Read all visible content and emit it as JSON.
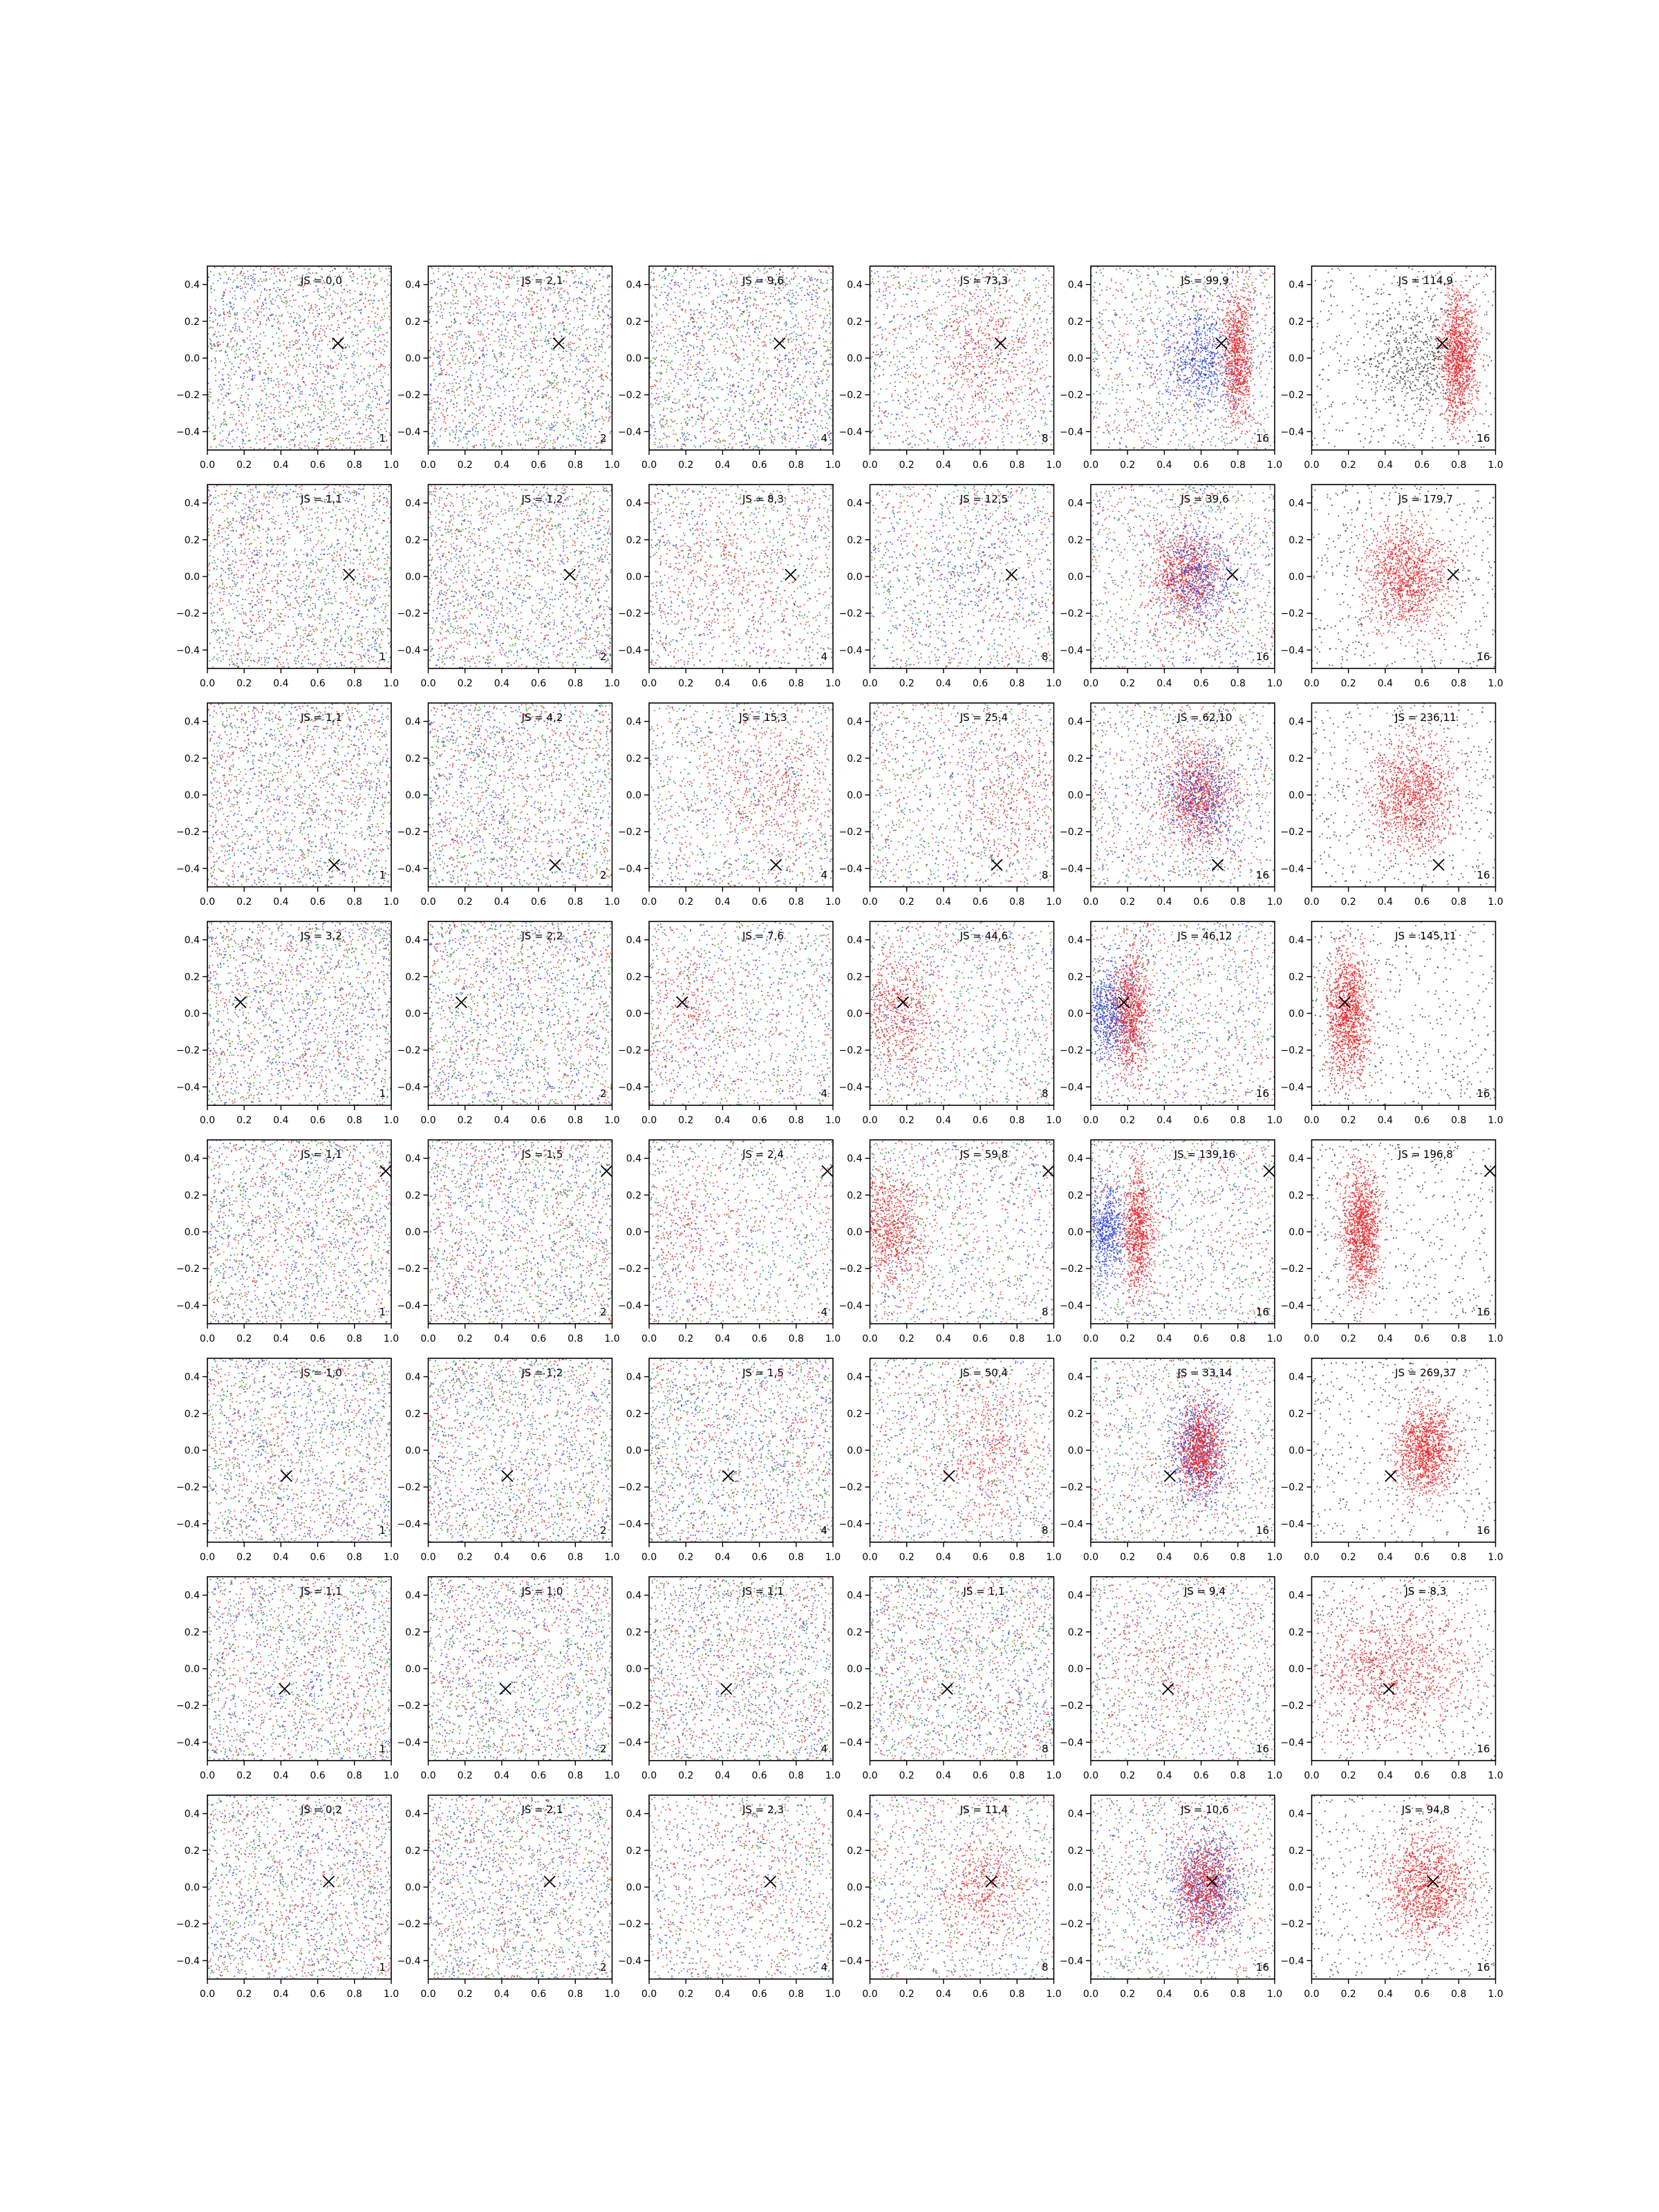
{
  "figure": {
    "layout": {
      "rows": 8,
      "cols": 6
    },
    "x_ticks": [
      "0.0",
      "0.2",
      "0.4",
      "0.6",
      "0.8",
      "1.0"
    ],
    "y_ticks": [
      "−0.4",
      "−0.2",
      "0.0",
      "0.2",
      "0.4"
    ],
    "colors": {
      "red": "#e8262a",
      "blue": "#2c3fd6",
      "green": "#2e9a2e",
      "black": "#333333",
      "marker": "#000000"
    },
    "marker_icon": "x-marker-icon"
  },
  "chart_data": [
    {
      "type": "scatter",
      "row": 0,
      "col": 0,
      "label": "JS = 0,0",
      "corner": "1",
      "marker": [
        0.71,
        0.08
      ],
      "clusters": []
    },
    {
      "type": "scatter",
      "row": 0,
      "col": 1,
      "label": "JS = 2,1",
      "corner": "2",
      "marker": [
        0.71,
        0.08
      ],
      "clusters": []
    },
    {
      "type": "scatter",
      "row": 0,
      "col": 2,
      "label": "JS = 9,6",
      "corner": "4",
      "marker": [
        0.71,
        0.08
      ],
      "clusters": []
    },
    {
      "type": "scatter",
      "row": 0,
      "col": 3,
      "label": "JS = 73,3",
      "corner": "8",
      "marker": [
        0.71,
        0.08
      ],
      "clusters": [
        {
          "color": "red",
          "cx": 0.62,
          "cy": 0.0,
          "sx": 0.15,
          "sy": 0.2,
          "n": 450
        }
      ]
    },
    {
      "type": "scatter",
      "row": 0,
      "col": 4,
      "label": "JS = 99,9",
      "corner": "16",
      "marker": [
        0.71,
        0.08
      ],
      "clusters": [
        {
          "color": "blue",
          "cx": 0.6,
          "cy": 0.0,
          "sx": 0.1,
          "sy": 0.15,
          "n": 700
        },
        {
          "color": "red",
          "cx": 0.8,
          "cy": 0.0,
          "sx": 0.04,
          "sy": 0.18,
          "n": 900
        }
      ]
    },
    {
      "type": "scatter",
      "row": 0,
      "col": 5,
      "label": "JS = 114,9",
      "corner": "16",
      "marker": [
        0.71,
        0.08
      ],
      "clusters": [
        {
          "color": "black",
          "cx": 0.55,
          "cy": 0.0,
          "sx": 0.12,
          "sy": 0.15,
          "n": 500
        },
        {
          "color": "red",
          "cx": 0.8,
          "cy": 0.0,
          "sx": 0.05,
          "sy": 0.18,
          "n": 1300
        }
      ]
    },
    {
      "type": "scatter",
      "row": 1,
      "col": 0,
      "label": "JS = 1,1",
      "corner": "1",
      "marker": [
        0.77,
        0.01
      ],
      "clusters": []
    },
    {
      "type": "scatter",
      "row": 1,
      "col": 1,
      "label": "JS = 1,2",
      "corner": "2",
      "marker": [
        0.77,
        0.01
      ],
      "clusters": []
    },
    {
      "type": "scatter",
      "row": 1,
      "col": 2,
      "label": "JS = 8,3",
      "corner": "4",
      "marker": [
        0.77,
        0.01
      ],
      "clusters": [
        {
          "color": "red",
          "cx": 0.4,
          "cy": 0.0,
          "sx": 0.2,
          "sy": 0.18,
          "n": 250
        }
      ]
    },
    {
      "type": "scatter",
      "row": 1,
      "col": 3,
      "label": "JS = 12,5",
      "corner": "8",
      "marker": [
        0.77,
        0.01
      ],
      "clusters": [
        {
          "color": "blue",
          "cx": 0.6,
          "cy": 0.0,
          "sx": 0.2,
          "sy": 0.18,
          "n": 200
        }
      ]
    },
    {
      "type": "scatter",
      "row": 1,
      "col": 4,
      "label": "JS = 39,6",
      "corner": "16",
      "marker": [
        0.77,
        0.01
      ],
      "clusters": [
        {
          "color": "red",
          "cx": 0.52,
          "cy": 0.0,
          "sx": 0.1,
          "sy": 0.13,
          "n": 900
        },
        {
          "color": "blue",
          "cx": 0.6,
          "cy": 0.0,
          "sx": 0.1,
          "sy": 0.13,
          "n": 500
        }
      ]
    },
    {
      "type": "scatter",
      "row": 1,
      "col": 5,
      "label": "JS = 179,7",
      "corner": "16",
      "marker": [
        0.77,
        0.01
      ],
      "clusters": [
        {
          "color": "red",
          "cx": 0.52,
          "cy": 0.0,
          "sx": 0.12,
          "sy": 0.15,
          "n": 1300
        }
      ]
    },
    {
      "type": "scatter",
      "row": 2,
      "col": 0,
      "label": "JS = 1,1",
      "corner": "1",
      "marker": [
        0.69,
        -0.38
      ],
      "clusters": []
    },
    {
      "type": "scatter",
      "row": 2,
      "col": 1,
      "label": "JS = 4,2",
      "corner": "2",
      "marker": [
        0.69,
        -0.38
      ],
      "clusters": []
    },
    {
      "type": "scatter",
      "row": 2,
      "col": 2,
      "label": "JS = 15,3",
      "corner": "4",
      "marker": [
        0.69,
        -0.38
      ],
      "clusters": [
        {
          "color": "red",
          "cx": 0.65,
          "cy": 0.0,
          "sx": 0.15,
          "sy": 0.2,
          "n": 350
        }
      ]
    },
    {
      "type": "scatter",
      "row": 2,
      "col": 3,
      "label": "JS = 25,4",
      "corner": "8",
      "marker": [
        0.69,
        -0.38
      ],
      "clusters": [
        {
          "color": "red",
          "cx": 0.75,
          "cy": 0.0,
          "sx": 0.15,
          "sy": 0.2,
          "n": 300
        }
      ]
    },
    {
      "type": "scatter",
      "row": 2,
      "col": 4,
      "label": "JS = 62,10",
      "corner": "16",
      "marker": [
        0.69,
        -0.38
      ],
      "clusters": [
        {
          "color": "red",
          "cx": 0.58,
          "cy": 0.0,
          "sx": 0.1,
          "sy": 0.14,
          "n": 1000
        },
        {
          "color": "blue",
          "cx": 0.6,
          "cy": 0.0,
          "sx": 0.1,
          "sy": 0.14,
          "n": 500
        }
      ]
    },
    {
      "type": "scatter",
      "row": 2,
      "col": 5,
      "label": "JS = 236,11",
      "corner": "16",
      "marker": [
        0.69,
        -0.38
      ],
      "clusters": [
        {
          "color": "red",
          "cx": 0.55,
          "cy": 0.0,
          "sx": 0.12,
          "sy": 0.16,
          "n": 1300
        }
      ]
    },
    {
      "type": "scatter",
      "row": 3,
      "col": 0,
      "label": "JS = 3,2",
      "corner": "1",
      "marker": [
        0.18,
        0.06
      ],
      "clusters": []
    },
    {
      "type": "scatter",
      "row": 3,
      "col": 1,
      "label": "JS = 2,2",
      "corner": "2",
      "marker": [
        0.18,
        0.06
      ],
      "clusters": []
    },
    {
      "type": "scatter",
      "row": 3,
      "col": 2,
      "label": "JS = 7,6",
      "corner": "4",
      "marker": [
        0.18,
        0.06
      ],
      "clusters": [
        {
          "color": "red",
          "cx": 0.2,
          "cy": 0.0,
          "sx": 0.15,
          "sy": 0.2,
          "n": 250
        }
      ]
    },
    {
      "type": "scatter",
      "row": 3,
      "col": 3,
      "label": "JS = 44,6",
      "corner": "8",
      "marker": [
        0.18,
        0.06
      ],
      "clusters": [
        {
          "color": "red",
          "cx": 0.15,
          "cy": 0.0,
          "sx": 0.1,
          "sy": 0.18,
          "n": 600
        }
      ]
    },
    {
      "type": "scatter",
      "row": 3,
      "col": 4,
      "label": "JS = 46,12",
      "corner": "16",
      "marker": [
        0.18,
        0.06
      ],
      "clusters": [
        {
          "color": "blue",
          "cx": 0.1,
          "cy": 0.0,
          "sx": 0.07,
          "sy": 0.13,
          "n": 700
        },
        {
          "color": "red",
          "cx": 0.22,
          "cy": 0.0,
          "sx": 0.05,
          "sy": 0.17,
          "n": 900
        }
      ]
    },
    {
      "type": "scatter",
      "row": 3,
      "col": 5,
      "label": "JS = 145,11",
      "corner": "16",
      "marker": [
        0.18,
        0.06
      ],
      "clusters": [
        {
          "color": "red",
          "cx": 0.2,
          "cy": 0.0,
          "sx": 0.06,
          "sy": 0.17,
          "n": 1300
        }
      ]
    },
    {
      "type": "scatter",
      "row": 4,
      "col": 0,
      "label": "JS = 1,1",
      "corner": "1",
      "marker": [
        0.97,
        0.33
      ],
      "clusters": []
    },
    {
      "type": "scatter",
      "row": 4,
      "col": 1,
      "label": "JS = 1,5",
      "corner": "2",
      "marker": [
        0.97,
        0.33
      ],
      "clusters": []
    },
    {
      "type": "scatter",
      "row": 4,
      "col": 2,
      "label": "JS = 2,4",
      "corner": "4",
      "marker": [
        0.97,
        0.33
      ],
      "clusters": [
        {
          "color": "red",
          "cx": 0.2,
          "cy": 0.0,
          "sx": 0.15,
          "sy": 0.18,
          "n": 200
        }
      ]
    },
    {
      "type": "scatter",
      "row": 4,
      "col": 3,
      "label": "JS = 59,8",
      "corner": "8",
      "marker": [
        0.97,
        0.33
      ],
      "clusters": [
        {
          "color": "red",
          "cx": 0.12,
          "cy": 0.0,
          "sx": 0.09,
          "sy": 0.16,
          "n": 800
        }
      ]
    },
    {
      "type": "scatter",
      "row": 4,
      "col": 4,
      "label": "JS = 139,16",
      "corner": "16",
      "marker": [
        0.97,
        0.33
      ],
      "clusters": [
        {
          "color": "blue",
          "cx": 0.08,
          "cy": 0.0,
          "sx": 0.06,
          "sy": 0.13,
          "n": 700
        },
        {
          "color": "red",
          "cx": 0.26,
          "cy": 0.0,
          "sx": 0.04,
          "sy": 0.17,
          "n": 900
        }
      ]
    },
    {
      "type": "scatter",
      "row": 4,
      "col": 5,
      "label": "JS = 196,8",
      "corner": "16",
      "marker": [
        0.97,
        0.33
      ],
      "clusters": [
        {
          "color": "red",
          "cx": 0.27,
          "cy": 0.0,
          "sx": 0.05,
          "sy": 0.17,
          "n": 1300
        }
      ]
    },
    {
      "type": "scatter",
      "row": 5,
      "col": 0,
      "label": "JS = 1,0",
      "corner": "1",
      "marker": [
        0.43,
        -0.14
      ],
      "clusters": []
    },
    {
      "type": "scatter",
      "row": 5,
      "col": 1,
      "label": "JS = 1,2",
      "corner": "2",
      "marker": [
        0.43,
        -0.14
      ],
      "clusters": []
    },
    {
      "type": "scatter",
      "row": 5,
      "col": 2,
      "label": "JS = 1,5",
      "corner": "4",
      "marker": [
        0.43,
        -0.14
      ],
      "clusters": []
    },
    {
      "type": "scatter",
      "row": 5,
      "col": 3,
      "label": "JS = 50,4",
      "corner": "8",
      "marker": [
        0.43,
        -0.14
      ],
      "clusters": [
        {
          "color": "red",
          "cx": 0.62,
          "cy": 0.0,
          "sx": 0.15,
          "sy": 0.2,
          "n": 450
        }
      ]
    },
    {
      "type": "scatter",
      "row": 5,
      "col": 4,
      "label": "JS = 33,14",
      "corner": "16",
      "marker": [
        0.43,
        -0.14
      ],
      "clusters": [
        {
          "color": "blue",
          "cx": 0.58,
          "cy": 0.0,
          "sx": 0.08,
          "sy": 0.14,
          "n": 700
        },
        {
          "color": "red",
          "cx": 0.6,
          "cy": 0.0,
          "sx": 0.06,
          "sy": 0.12,
          "n": 1000
        }
      ]
    },
    {
      "type": "scatter",
      "row": 5,
      "col": 5,
      "label": "JS = 269,37",
      "corner": "16",
      "marker": [
        0.43,
        -0.14
      ],
      "clusters": [
        {
          "color": "red",
          "cx": 0.62,
          "cy": 0.0,
          "sx": 0.08,
          "sy": 0.13,
          "n": 1300
        }
      ]
    },
    {
      "type": "scatter",
      "row": 6,
      "col": 0,
      "label": "JS = 1,1",
      "corner": "1",
      "marker": [
        0.42,
        -0.11
      ],
      "clusters": []
    },
    {
      "type": "scatter",
      "row": 6,
      "col": 1,
      "label": "JS = 1,0",
      "corner": "2",
      "marker": [
        0.42,
        -0.11
      ],
      "clusters": []
    },
    {
      "type": "scatter",
      "row": 6,
      "col": 2,
      "label": "JS = 1,1",
      "corner": "4",
      "marker": [
        0.42,
        -0.11
      ],
      "clusters": []
    },
    {
      "type": "scatter",
      "row": 6,
      "col": 3,
      "label": "JS = 1,1",
      "corner": "8",
      "marker": [
        0.42,
        -0.11
      ],
      "clusters": []
    },
    {
      "type": "scatter",
      "row": 6,
      "col": 4,
      "label": "JS = 9,4",
      "corner": "16",
      "marker": [
        0.42,
        -0.11
      ],
      "clusters": [
        {
          "color": "red",
          "cx": 0.4,
          "cy": 0.0,
          "sx": 0.2,
          "sy": 0.18,
          "n": 250
        }
      ]
    },
    {
      "type": "scatter",
      "row": 6,
      "col": 5,
      "label": "JS = 8,3",
      "corner": "16",
      "marker": [
        0.42,
        -0.11
      ],
      "clusters": [
        {
          "color": "red",
          "cx": 0.45,
          "cy": 0.0,
          "sx": 0.25,
          "sy": 0.2,
          "n": 1300
        }
      ]
    },
    {
      "type": "scatter",
      "row": 7,
      "col": 0,
      "label": "JS = 0,2",
      "corner": "1",
      "marker": [
        0.66,
        0.03
      ],
      "clusters": []
    },
    {
      "type": "scatter",
      "row": 7,
      "col": 1,
      "label": "JS = 2,1",
      "corner": "2",
      "marker": [
        0.66,
        0.03
      ],
      "clusters": []
    },
    {
      "type": "scatter",
      "row": 7,
      "col": 2,
      "label": "JS = 2,3",
      "corner": "4",
      "marker": [
        0.66,
        0.03
      ],
      "clusters": [
        {
          "color": "red",
          "cx": 0.6,
          "cy": 0.0,
          "sx": 0.18,
          "sy": 0.18,
          "n": 150
        }
      ]
    },
    {
      "type": "scatter",
      "row": 7,
      "col": 3,
      "label": "JS = 11,4",
      "corner": "8",
      "marker": [
        0.66,
        0.03
      ],
      "clusters": [
        {
          "color": "red",
          "cx": 0.62,
          "cy": 0.0,
          "sx": 0.12,
          "sy": 0.15,
          "n": 450
        }
      ]
    },
    {
      "type": "scatter",
      "row": 7,
      "col": 4,
      "label": "JS = 10,6",
      "corner": "16",
      "marker": [
        0.66,
        0.03
      ],
      "clusters": [
        {
          "color": "blue",
          "cx": 0.62,
          "cy": 0.0,
          "sx": 0.1,
          "sy": 0.14,
          "n": 700
        },
        {
          "color": "red",
          "cx": 0.62,
          "cy": 0.0,
          "sx": 0.08,
          "sy": 0.13,
          "n": 900
        }
      ]
    },
    {
      "type": "scatter",
      "row": 7,
      "col": 5,
      "label": "JS = 94,8",
      "corner": "16",
      "marker": [
        0.66,
        0.03
      ],
      "clusters": [
        {
          "color": "red",
          "cx": 0.62,
          "cy": 0.0,
          "sx": 0.12,
          "sy": 0.15,
          "n": 1300
        }
      ]
    }
  ]
}
